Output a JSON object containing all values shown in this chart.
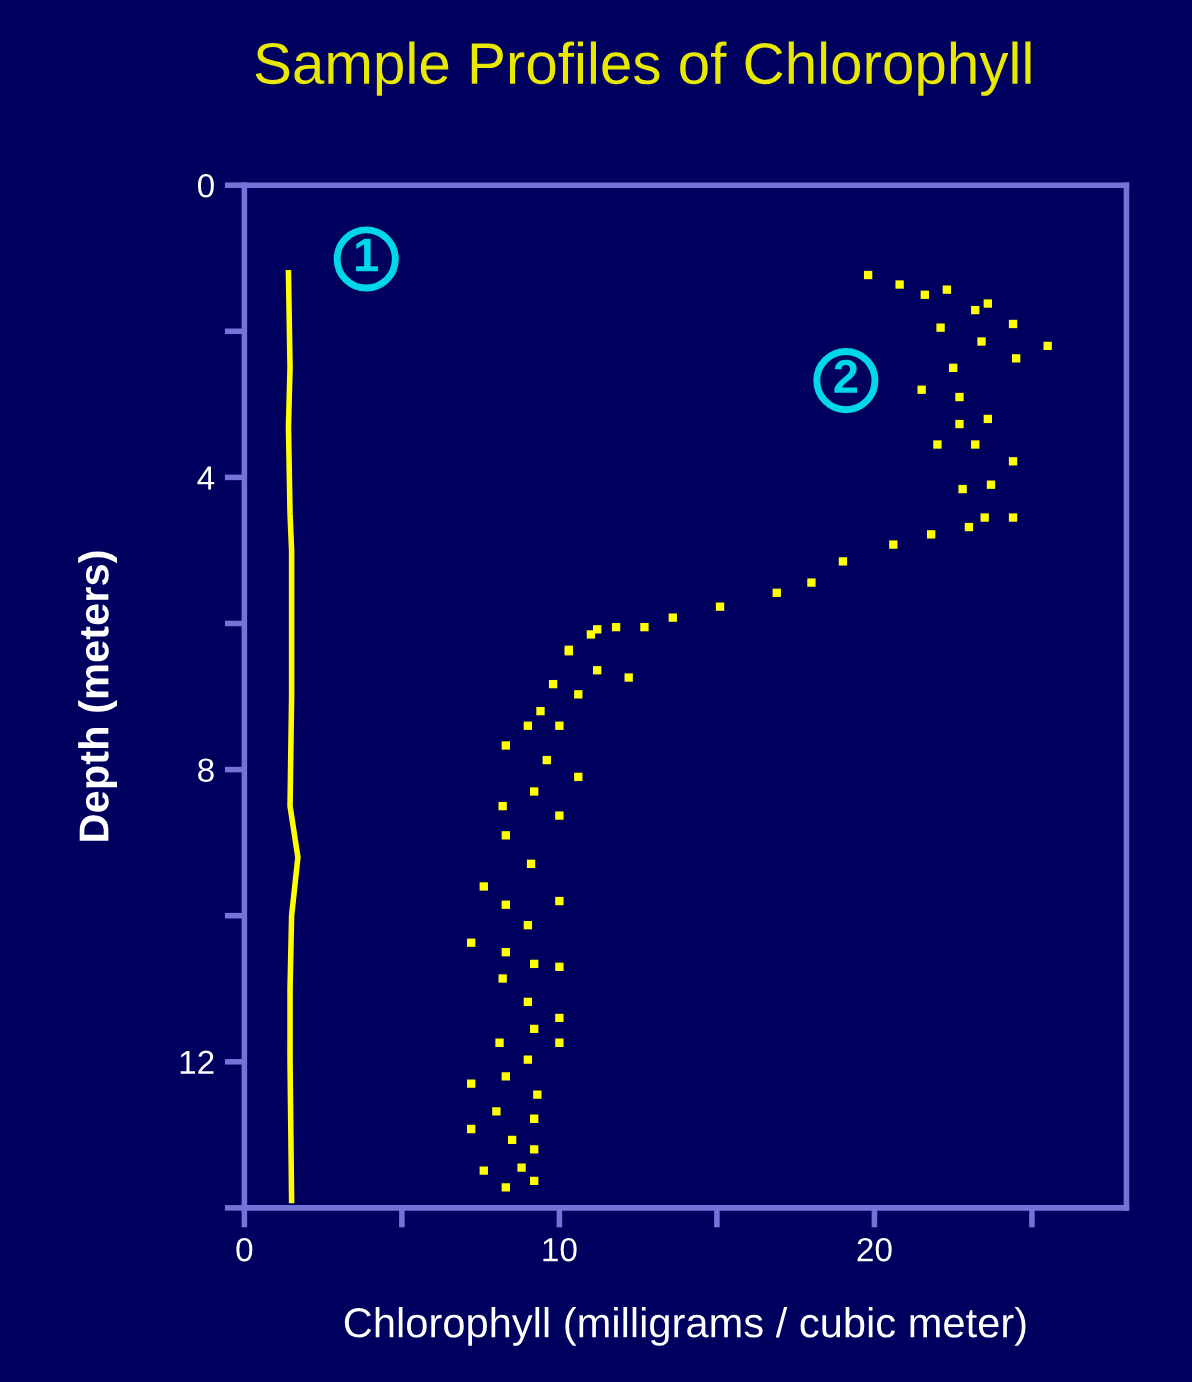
{
  "chart_data": {
    "type": "scatter",
    "title": "Sample Profiles of Chlorophyll",
    "xlabel": "Chlorophyll (milligrams / cubic meter)",
    "ylabel": "Depth (meters)",
    "xlim": [
      0,
      28
    ],
    "ylim": [
      14,
      0
    ],
    "xticks": [
      0,
      {
        "value": 5,
        "label": null
      },
      10,
      {
        "value": 15,
        "label": null
      },
      20,
      {
        "value": 25,
        "label": null
      }
    ],
    "yticks": [
      0,
      {
        "value": 2,
        "label": null
      },
      4,
      {
        "value": 6,
        "label": null
      },
      8,
      {
        "value": 10,
        "label": null
      },
      12,
      {
        "value": 14,
        "label": null
      }
    ],
    "grid": false,
    "legend": false,
    "series": [
      {
        "name": "1",
        "type": "line",
        "color": "#ffff00",
        "x": [
          1.4,
          1.45,
          1.4,
          1.45,
          1.5,
          1.5,
          1.45,
          1.7,
          1.5,
          1.45,
          1.45,
          1.5
        ],
        "values": [
          1.2,
          2.5,
          3.3,
          4.5,
          5.0,
          7.0,
          8.5,
          9.2,
          10.0,
          11.0,
          12.0,
          13.9
        ]
      },
      {
        "name": "2",
        "color": "#ffff00",
        "x": [
          19.8,
          20.8,
          21.6,
          22.3,
          23.6,
          23.2,
          24.4,
          22.1,
          23.4,
          25.5,
          24.5,
          22.5,
          21.5,
          22.7,
          23.6,
          22.7,
          22.0,
          23.2,
          24.4,
          23.7,
          22.8,
          24.4,
          23.5,
          23.0,
          21.8,
          20.6,
          19.0,
          18.0,
          16.9,
          15.1,
          13.6,
          12.7,
          11.8,
          11.2,
          11.0,
          10.3,
          10.3,
          11.2,
          12.2,
          9.8,
          10.6,
          9.4,
          9.0,
          10.0,
          8.3,
          9.6,
          10.6,
          9.2,
          8.2,
          10.0,
          8.3,
          9.1,
          7.6,
          10.0,
          8.3,
          9.0,
          7.2,
          8.3,
          9.2,
          10.0,
          8.2,
          9.0,
          10.0,
          9.2,
          10.0,
          8.1,
          9.0,
          8.3,
          7.2,
          9.3,
          8.0,
          9.2,
          7.2,
          8.5,
          9.2,
          8.8,
          7.6,
          9.2,
          8.3
        ],
        "values": [
          1.23,
          1.36,
          1.5,
          1.43,
          1.62,
          1.71,
          1.9,
          1.95,
          2.14,
          2.2,
          2.37,
          2.5,
          2.8,
          2.9,
          3.2,
          3.27,
          3.55,
          3.55,
          3.78,
          4.1,
          4.16,
          4.55,
          4.55,
          4.68,
          4.78,
          4.92,
          5.15,
          5.44,
          5.58,
          5.77,
          5.92,
          6.05,
          6.05,
          6.08,
          6.15,
          6.36,
          6.38,
          6.64,
          6.74,
          6.83,
          6.97,
          7.2,
          7.4,
          7.4,
          7.67,
          7.87,
          8.1,
          8.3,
          8.5,
          8.63,
          8.9,
          9.29,
          9.6,
          9.8,
          9.85,
          10.13,
          10.37,
          10.5,
          10.66,
          10.7,
          10.86,
          11.18,
          11.4,
          11.55,
          11.74,
          11.74,
          11.97,
          12.2,
          12.3,
          12.45,
          12.68,
          12.78,
          12.92,
          13.07,
          13.2,
          13.45,
          13.49,
          13.63,
          13.72
        ]
      }
    ]
  }
}
